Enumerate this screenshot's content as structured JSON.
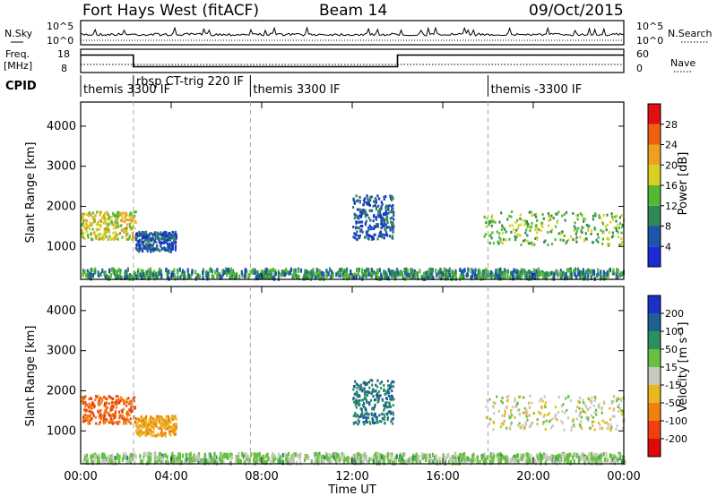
{
  "header": {
    "title_left": "Fort Hays West (fitACF)",
    "title_center": "Beam 14",
    "title_right": "09/Oct/2015"
  },
  "top_panels": {
    "nsky_label": "N.Sky",
    "nsky_ticks": [
      "10^5",
      "10^0"
    ],
    "nsearch_label": "N.Search",
    "nsearch_ticks": [
      "10^5",
      "10^0"
    ],
    "freq_label_1": "Freq.",
    "freq_label_2": "[MHz]",
    "freq_ticks": [
      "18",
      "8"
    ],
    "nave_label": "Nave",
    "nave_ticks": [
      "60",
      "0"
    ],
    "cpid_label": "CPID",
    "cpid_segments": [
      {
        "label": "themis 3300 IF",
        "start_hr": 0.0,
        "end_hr": 2.33
      },
      {
        "label": "rbsp CT-trig 220 IF",
        "start_hr": 2.33,
        "end_hr": 7.5
      },
      {
        "label": "themis 3300 IF",
        "start_hr": 7.5,
        "end_hr": 18.0
      },
      {
        "label": "themis -3300 IF",
        "start_hr": 18.0,
        "end_hr": 24.0
      }
    ],
    "freq_steps": [
      {
        "start_hr": 0.0,
        "end_hr": 2.33,
        "freq_mhz": 15.5
      },
      {
        "start_hr": 2.33,
        "end_hr": 14.0,
        "freq_mhz": 10.5
      },
      {
        "start_hr": 14.0,
        "end_hr": 24.0,
        "freq_mhz": 15.5
      }
    ]
  },
  "chart_data": [
    {
      "type": "heatmap",
      "name": "power",
      "xlabel": "Time UT",
      "ylabel": "Slant Range [km]",
      "xlim": [
        0,
        24
      ],
      "ylim": [
        180,
        4600
      ],
      "x_ticks": [
        "00:00",
        "04:00",
        "08:00",
        "12:00",
        "16:00",
        "20:00",
        "00:00"
      ],
      "y_ticks": [
        1000,
        2000,
        3000,
        4000
      ],
      "colorbar_label": "Power [dB]",
      "colorbar_ticks": [
        4,
        8,
        12,
        16,
        20,
        24,
        28
      ],
      "colorbar_range": [
        0,
        32
      ],
      "colors": [
        "#1a2ad6",
        "#1d55a8",
        "#2e8a55",
        "#55b830",
        "#d8d020",
        "#f0a020",
        "#f06010",
        "#e01010"
      ],
      "regions": [
        {
          "t_start": 0.0,
          "t_end": 2.4,
          "r_low": 1200,
          "r_high": 1900,
          "level": 20
        },
        {
          "t_start": 2.4,
          "t_end": 4.2,
          "r_low": 900,
          "r_high": 1400,
          "level": 8
        },
        {
          "t_start": 12.0,
          "t_end": 13.8,
          "r_low": 1200,
          "r_high": 2300,
          "level": 8
        },
        {
          "t_start": 17.8,
          "t_end": 24.0,
          "r_low": 1050,
          "r_high": 1900,
          "level": 16
        },
        {
          "t_start": 0.0,
          "t_end": 24.0,
          "r_low": 250,
          "r_high": 480,
          "level": 12
        }
      ]
    },
    {
      "type": "heatmap",
      "name": "velocity",
      "xlabel": "Time UT",
      "ylabel": "Slant Range [km]",
      "xlim": [
        0,
        24
      ],
      "ylim": [
        180,
        4600
      ],
      "x_ticks": [
        "00:00",
        "04:00",
        "08:00",
        "12:00",
        "16:00",
        "20:00",
        "00:00"
      ],
      "y_ticks": [
        1000,
        2000,
        3000,
        4000
      ],
      "colorbar_label": "Velocity [m s⁻¹]",
      "colorbar_ticks": [
        200,
        100,
        50,
        15,
        -15,
        -50,
        -100,
        -200
      ],
      "colors": [
        "#1a30c8",
        "#1e6090",
        "#2a9060",
        "#68c040",
        "#c8c8c0",
        "#e8b820",
        "#f08010",
        "#f04010",
        "#e00808"
      ],
      "regions": [
        {
          "t_start": 0.0,
          "t_end": 2.4,
          "r_low": 1200,
          "r_high": 1900,
          "velocity": -100
        },
        {
          "t_start": 2.4,
          "t_end": 4.2,
          "r_low": 900,
          "r_high": 1400,
          "velocity": -50
        },
        {
          "t_start": 12.0,
          "t_end": 13.8,
          "r_low": 1200,
          "r_high": 2300,
          "velocity": 100
        },
        {
          "t_start": 17.8,
          "t_end": 24.0,
          "r_low": 1050,
          "r_high": 1900,
          "velocity": 0
        },
        {
          "t_start": 0.0,
          "t_end": 24.0,
          "r_low": 250,
          "r_high": 480,
          "velocity": 25
        }
      ]
    }
  ]
}
